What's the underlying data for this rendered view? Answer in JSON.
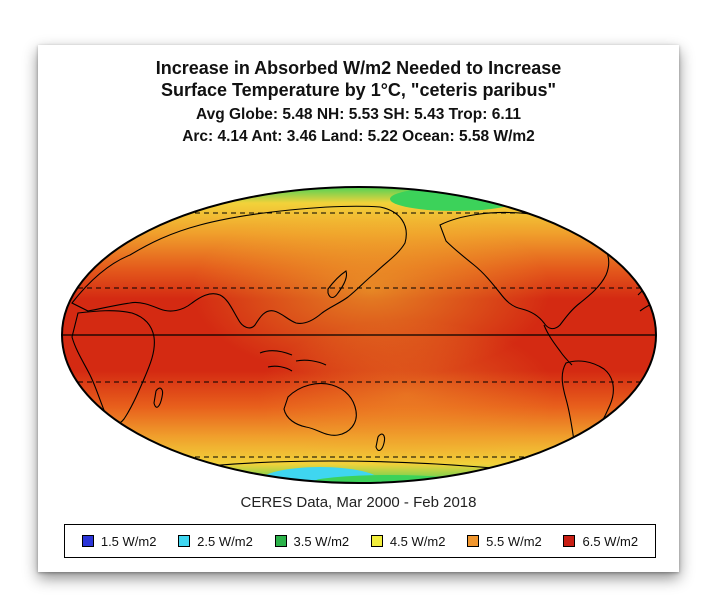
{
  "title": {
    "line1": "Increase in Absorbed W/m2 Needed to Increase",
    "line2": "Surface Temperature by 1°C, \"ceteris paribus\"",
    "stats1": "Avg Globe: 5.48  NH: 5.53  SH: 5.43  Trop: 6.11",
    "stats2": "Arc: 4.14  Ant: 3.46  Land: 5.22 Ocean: 5.58 W/m2"
  },
  "caption": "CERES Data, Mar 2000 - Feb 2018",
  "legend": [
    {
      "label": "1.5 W/m2",
      "color": "#2b35d8"
    },
    {
      "label": "2.5 W/m2",
      "color": "#3fd6f0"
    },
    {
      "label": "3.5 W/m2",
      "color": "#2bb24a"
    },
    {
      "label": "4.5 W/m2",
      "color": "#f2ee3c"
    },
    {
      "label": "5.5 W/m2",
      "color": "#f0962e"
    },
    {
      "label": "6.5 W/m2",
      "color": "#c81e14"
    }
  ],
  "map": {
    "projection": "mollweide",
    "gridlines": [
      "equator",
      "tropics",
      "polar circles"
    ],
    "colors": {
      "ocean_tropics": "#d42a12",
      "midlat": "#ef7a22",
      "subpolar": "#f2c832",
      "polar": "#3cd25a",
      "ice": "#3fd6f0"
    }
  }
}
